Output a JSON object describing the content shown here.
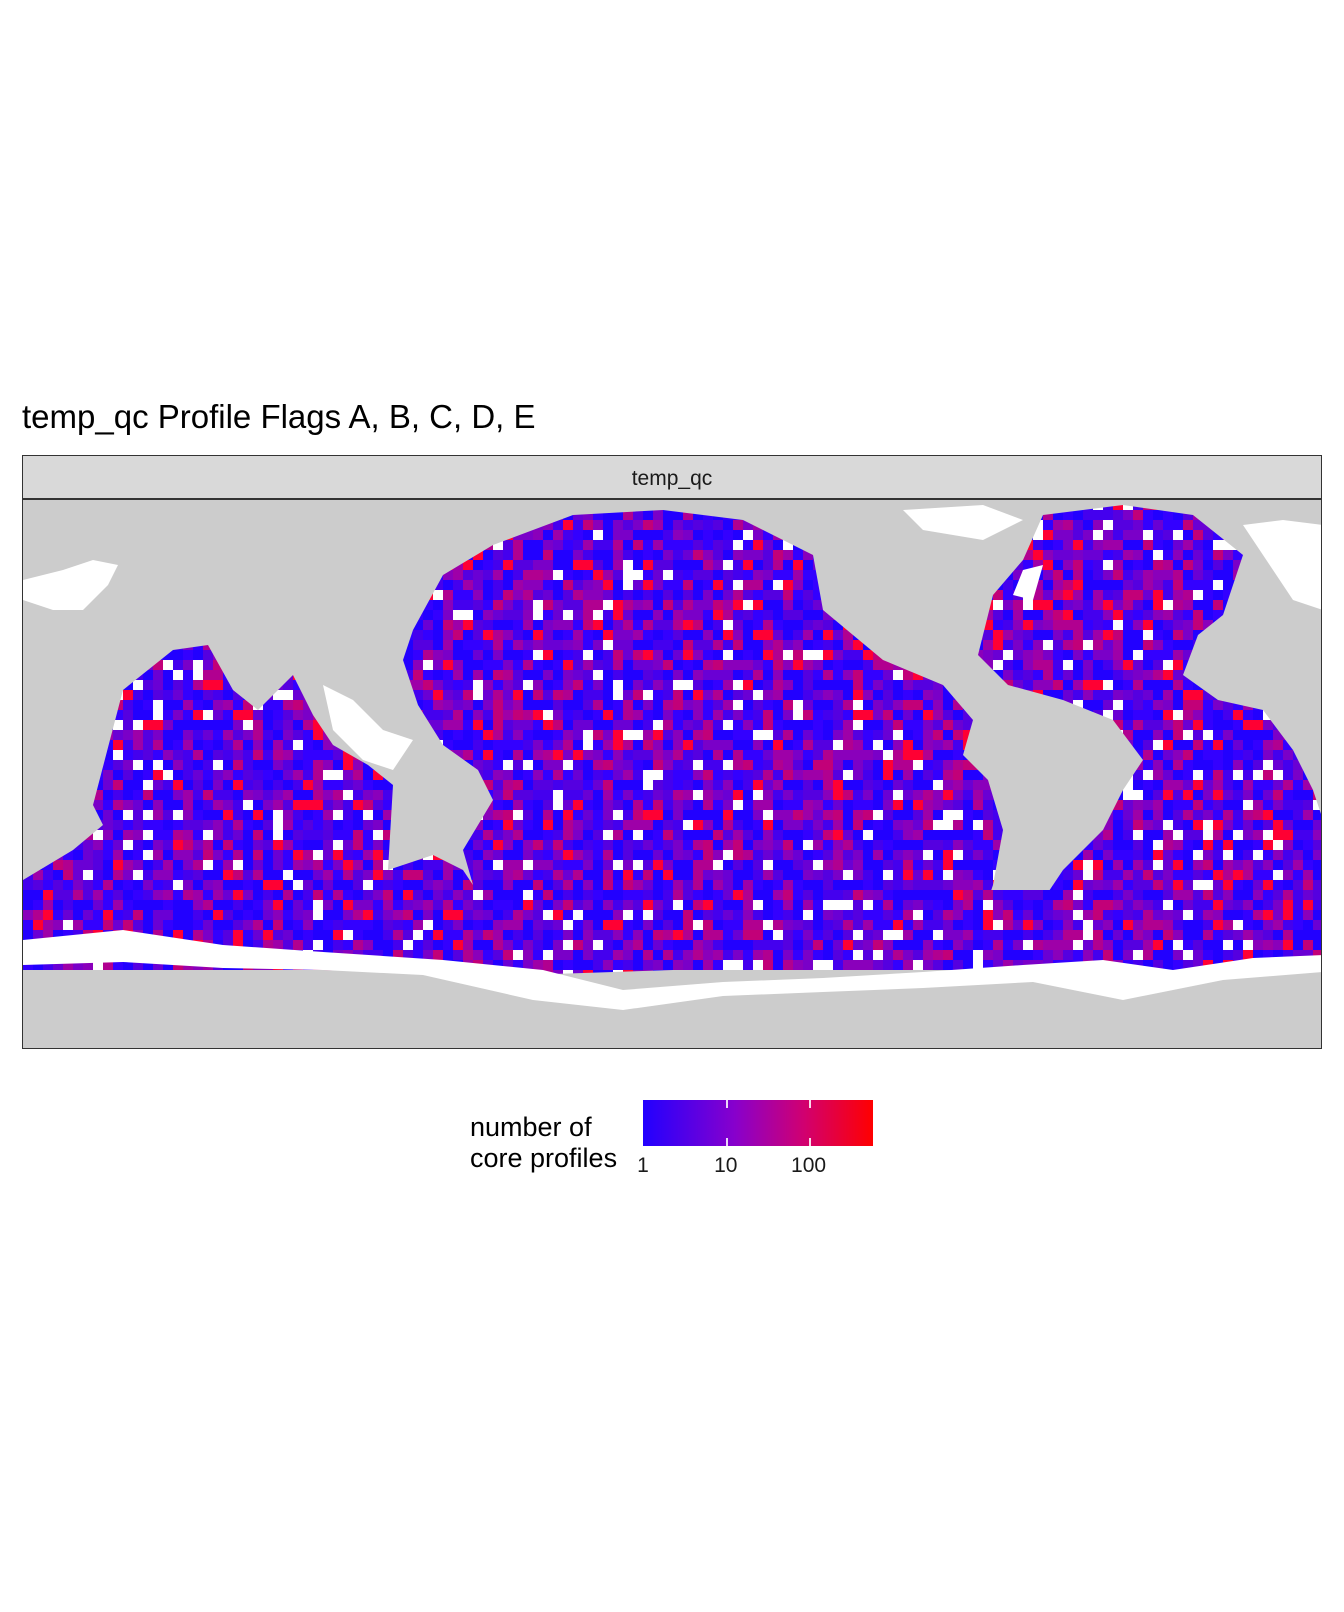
{
  "title": "temp_qc Profile Flags A, B, C, D, E",
  "facet": {
    "label": "temp_qc"
  },
  "map": {
    "land_color": "#cccccc",
    "nodata_color": "#ffffff",
    "color_low": "#2200ff",
    "color_high": "#ff0000",
    "scale": "log10",
    "longitude_range": [
      20,
      380
    ],
    "latitude_range": [
      -80,
      80
    ]
  },
  "legend": {
    "title_line1": "number of",
    "title_line2": "core profiles",
    "ticks": [
      {
        "label": "1",
        "value": 1
      },
      {
        "label": "10",
        "value": 10
      },
      {
        "label": "100",
        "value": 100
      }
    ],
    "max_value": 600
  }
}
